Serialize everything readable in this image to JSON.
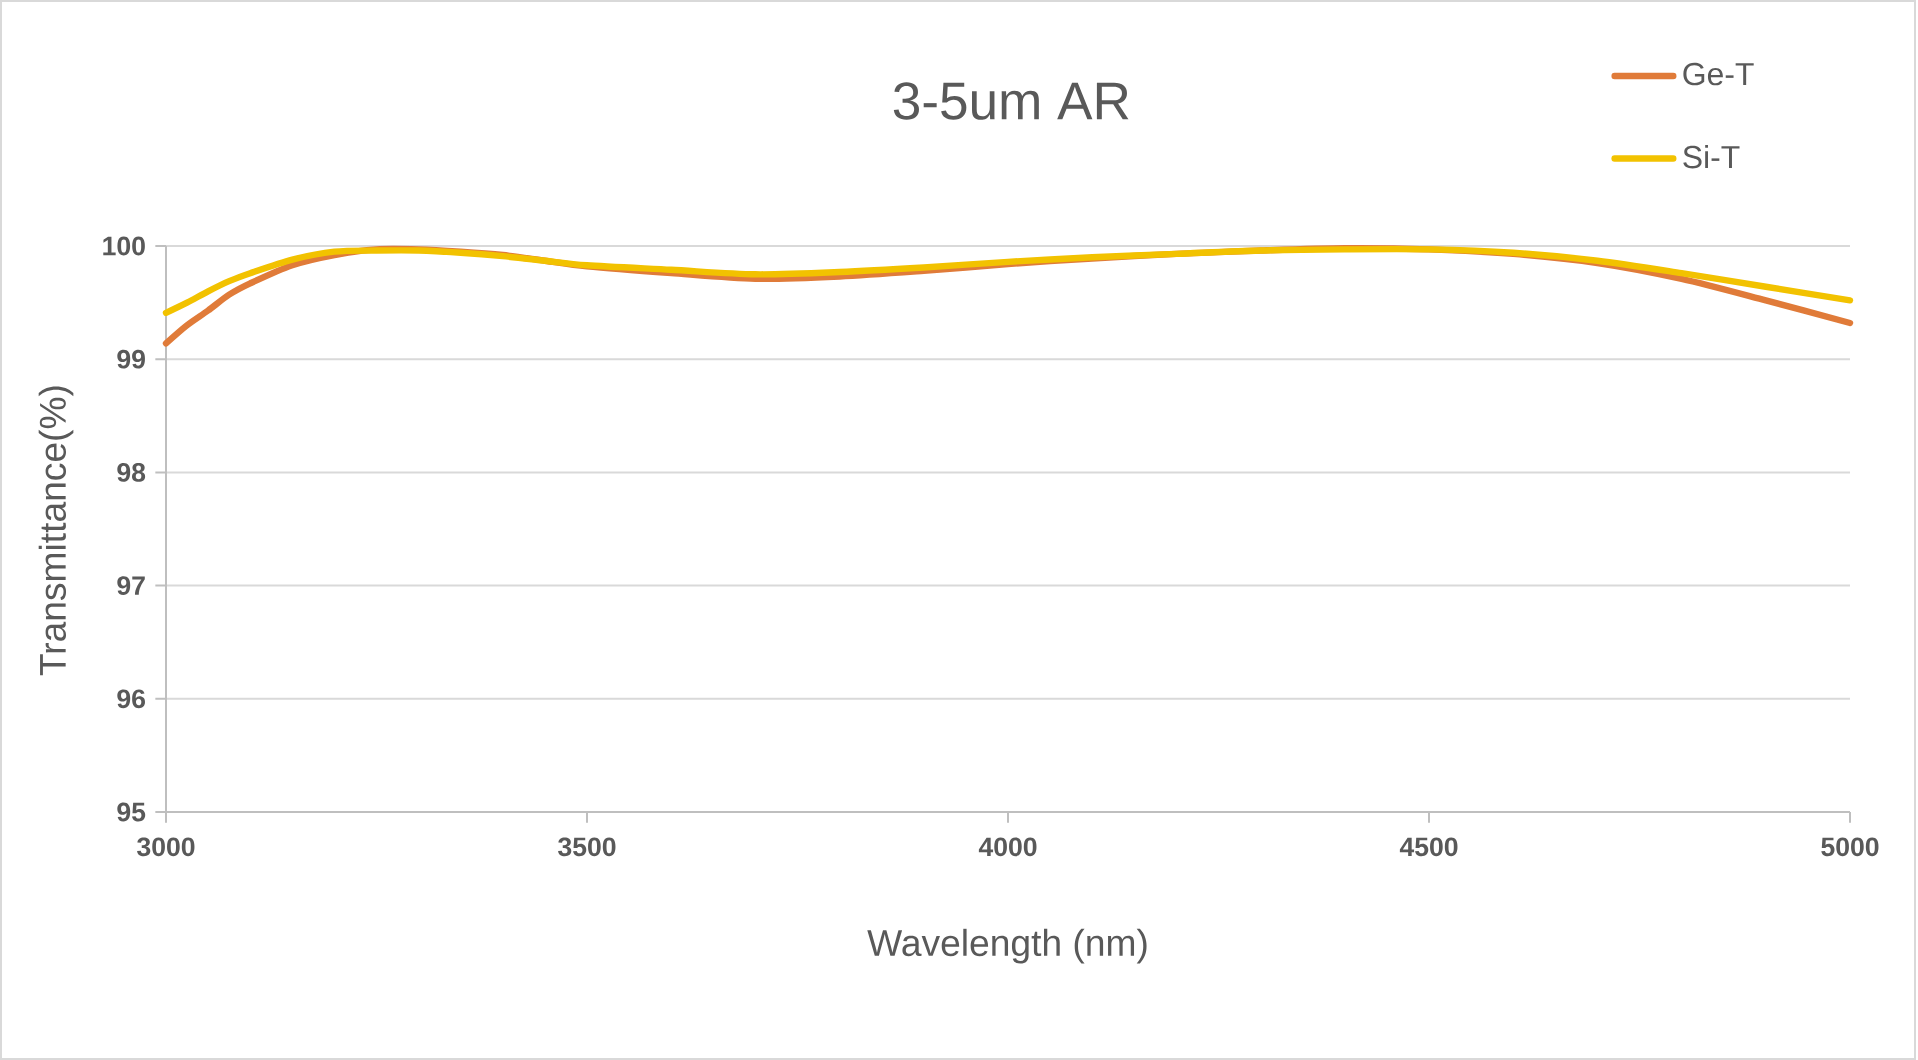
{
  "chart_data": {
    "type": "line",
    "title": "3-5um AR",
    "xlabel": "Wavelength (nm)",
    "ylabel": "Transmittance(%)",
    "xlim": [
      3000,
      5000
    ],
    "ylim": [
      95,
      100
    ],
    "xticks": [
      3000,
      3500,
      4000,
      4500,
      5000
    ],
    "yticks": [
      95,
      96,
      97,
      98,
      99,
      100
    ],
    "grid": "y",
    "legend": "top right",
    "x": [
      3000,
      3025,
      3050,
      3075,
      3100,
      3150,
      3200,
      3250,
      3300,
      3350,
      3400,
      3450,
      3500,
      3600,
      3700,
      3800,
      3900,
      4000,
      4100,
      4200,
      4300,
      4400,
      4500,
      4600,
      4700,
      4800,
      4900,
      5000
    ],
    "series": [
      {
        "name": "Ge-T",
        "color": "#E07B39",
        "values": [
          99.14,
          99.3,
          99.43,
          99.57,
          99.67,
          99.83,
          99.92,
          99.97,
          99.97,
          99.95,
          99.92,
          99.87,
          99.82,
          99.76,
          99.71,
          99.73,
          99.78,
          99.84,
          99.89,
          99.93,
          99.96,
          99.98,
          99.97,
          99.93,
          99.85,
          99.71,
          99.52,
          99.32
        ]
      },
      {
        "name": "Si-T",
        "color": "#F2C200",
        "values": [
          99.41,
          99.5,
          99.6,
          99.69,
          99.76,
          99.88,
          99.95,
          99.96,
          99.96,
          99.94,
          99.91,
          99.87,
          99.83,
          99.79,
          99.75,
          99.77,
          99.81,
          99.86,
          99.9,
          99.93,
          99.96,
          99.97,
          99.97,
          99.94,
          99.87,
          99.76,
          99.64,
          99.52
        ]
      }
    ]
  }
}
